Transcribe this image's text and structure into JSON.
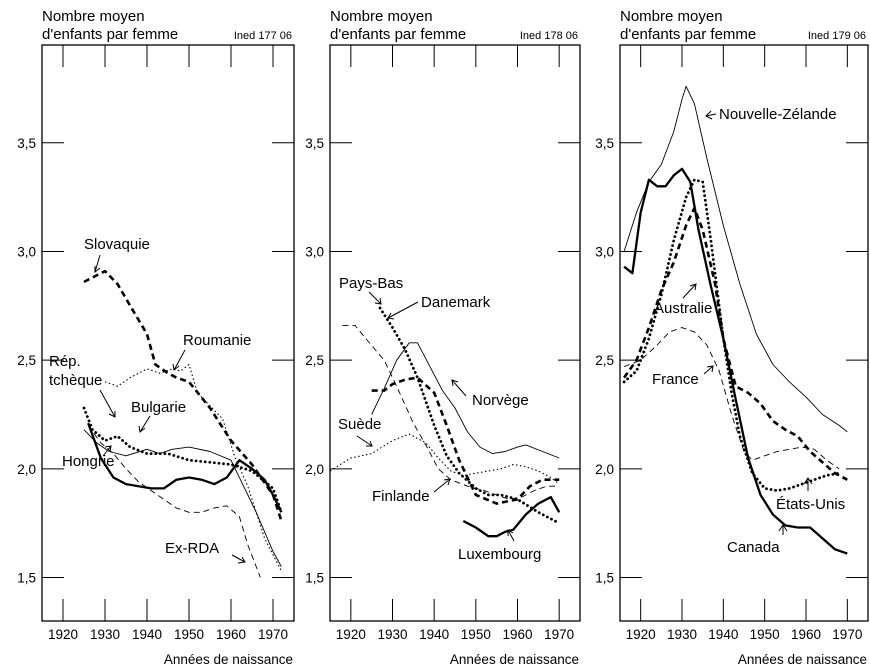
{
  "chart_data": [
    {
      "type": "line",
      "title_lines": [
        "Nombre moyen",
        "d'enfants par femme"
      ],
      "source": "Ined 177 06",
      "xlabel": "Années de naissance",
      "xlim": [
        1915,
        1975
      ],
      "ylim": [
        1.3,
        3.95
      ],
      "x_ticks": [
        1920,
        1930,
        1940,
        1950,
        1960,
        1970
      ],
      "x_tick_labels": [
        "1920",
        "1930",
        "1940",
        "1950",
        "1960",
        "1970"
      ],
      "y_ticks": [
        1.5,
        2.0,
        2.5,
        3.0,
        3.5
      ],
      "y_tick_labels": [
        "1,5",
        "2,0",
        "2,5",
        "3,0",
        "3,5"
      ],
      "series": [
        {
          "name": "Slovaquie",
          "style": "thick-dash",
          "x": [
            1925,
            1928,
            1930,
            1933,
            1936,
            1940,
            1942,
            1945,
            1947,
            1950,
            1955,
            1960,
            1965,
            1970,
            1972
          ],
          "y": [
            2.86,
            2.89,
            2.91,
            2.85,
            2.75,
            2.62,
            2.48,
            2.44,
            2.42,
            2.4,
            2.28,
            2.13,
            2.02,
            1.88,
            1.76
          ]
        },
        {
          "name": "Roumanie",
          "style": "dotted",
          "x": [
            1930,
            1933,
            1936,
            1940,
            1943,
            1946,
            1948,
            1950,
            1952,
            1955,
            1958,
            1961,
            1964,
            1968,
            1972
          ],
          "y": [
            2.4,
            2.38,
            2.42,
            2.46,
            2.44,
            2.46,
            2.45,
            2.48,
            2.35,
            2.29,
            2.23,
            2.05,
            1.92,
            1.68,
            1.53
          ]
        },
        {
          "name": "Rép. tchèque",
          "style": "dotted-thick",
          "x": [
            1925,
            1927,
            1930,
            1933,
            1936,
            1940,
            1945,
            1950,
            1955,
            1960,
            1965,
            1970,
            1972
          ],
          "y": [
            2.28,
            2.18,
            2.13,
            2.15,
            2.1,
            2.07,
            2.07,
            2.04,
            2.03,
            2.02,
            1.99,
            1.91,
            1.8
          ]
        },
        {
          "name": "Bulgarie",
          "style": "thin-dash",
          "x": [
            1926,
            1929,
            1932,
            1935,
            1938,
            1941,
            1944,
            1947,
            1950,
            1953,
            1956,
            1959,
            1962,
            1964,
            1967
          ],
          "y": [
            2.2,
            2.12,
            2.07,
            2.0,
            1.94,
            1.9,
            1.86,
            1.82,
            1.8,
            1.8,
            1.82,
            1.83,
            1.78,
            1.65,
            1.5
          ]
        },
        {
          "name": "Hongrie",
          "style": "solid-thick",
          "x": [
            1926,
            1929,
            1932,
            1935,
            1938,
            1941,
            1944,
            1947,
            1950,
            1953,
            1956,
            1959,
            1962,
            1965,
            1968,
            1970,
            1972
          ],
          "y": [
            2.21,
            2.05,
            1.96,
            1.93,
            1.92,
            1.91,
            1.91,
            1.95,
            1.96,
            1.95,
            1.93,
            1.96,
            2.04,
            2.0,
            1.95,
            1.88,
            1.8
          ]
        },
        {
          "name": "Ex-RDA",
          "style": "solid-thin",
          "x": [
            1925,
            1928,
            1931,
            1935,
            1940,
            1943,
            1946,
            1950,
            1955,
            1960,
            1963,
            1966,
            1970,
            1972
          ],
          "y": [
            2.18,
            2.12,
            2.08,
            2.06,
            2.09,
            2.07,
            2.09,
            2.1,
            2.08,
            2.04,
            1.92,
            1.8,
            1.62,
            1.55
          ]
        }
      ],
      "labels": {
        "Slovaquie": "Slovaquie",
        "Roumanie": "Roumanie",
        "Rep_line1": "Rép.",
        "Rep_line2": "tchèque",
        "Bulgarie": "Bulgarie",
        "Hongrie": "Hongrie",
        "ExRDA": "Ex-RDA"
      }
    },
    {
      "type": "line",
      "title_lines": [
        "Nombre moyen",
        "d'enfants par femme"
      ],
      "source": "Ined 178 06",
      "xlabel": "Années de naissance",
      "xlim": [
        1915,
        1975
      ],
      "ylim": [
        1.3,
        3.95
      ],
      "x_ticks": [
        1920,
        1930,
        1940,
        1950,
        1960,
        1970
      ],
      "x_tick_labels": [
        "1920",
        "1930",
        "1940",
        "1950",
        "1960",
        "1970"
      ],
      "y_ticks": [
        1.5,
        2.0,
        2.5,
        3.0,
        3.5
      ],
      "y_tick_labels": [
        "1,5",
        "2,0",
        "2,5",
        "3,0",
        "3,5"
      ],
      "series": [
        {
          "name": "Pays-Bas",
          "style": "dotted-thick",
          "x": [
            1927,
            1930,
            1933,
            1936,
            1940,
            1943,
            1946,
            1950,
            1953,
            1956,
            1960,
            1965,
            1970
          ],
          "y": [
            2.74,
            2.65,
            2.55,
            2.42,
            2.2,
            2.06,
            1.98,
            1.91,
            1.88,
            1.88,
            1.86,
            1.8,
            1.75
          ]
        },
        {
          "name": "Danemark",
          "style": "thick-dash",
          "x": [
            1925,
            1928,
            1930,
            1933,
            1936,
            1940,
            1943,
            1946,
            1950,
            1955,
            1960,
            1963,
            1966,
            1970
          ],
          "y": [
            2.36,
            2.36,
            2.39,
            2.41,
            2.42,
            2.35,
            2.2,
            2.04,
            1.88,
            1.84,
            1.86,
            1.92,
            1.95,
            1.95
          ]
        },
        {
          "name": "Norvège",
          "style": "solid-thin",
          "x": [
            1925,
            1928,
            1931,
            1934,
            1936,
            1939,
            1942,
            1945,
            1948,
            1951,
            1954,
            1957,
            1960,
            1962,
            1966,
            1970
          ],
          "y": [
            2.25,
            2.37,
            2.5,
            2.58,
            2.58,
            2.47,
            2.36,
            2.28,
            2.17,
            2.1,
            2.07,
            2.08,
            2.1,
            2.11,
            2.08,
            2.05
          ]
        },
        {
          "name": "Suède",
          "style": "thin-dash",
          "x": [
            1918,
            1921,
            1924,
            1928,
            1931,
            1935,
            1938,
            1941,
            1944,
            1948,
            1952,
            1955,
            1958,
            1961,
            1964,
            1967,
            1970
          ],
          "y": [
            2.66,
            2.66,
            2.59,
            2.5,
            2.38,
            2.21,
            2.11,
            2.0,
            1.95,
            1.92,
            1.9,
            1.88,
            1.86,
            1.87,
            1.9,
            1.92,
            1.92
          ]
        },
        {
          "name": "Finlande",
          "style": "dotted",
          "x": [
            1915,
            1920,
            1925,
            1930,
            1934,
            1938,
            1941,
            1944,
            1947,
            1950,
            1953,
            1956,
            1959,
            1962,
            1965,
            1968,
            1970
          ],
          "y": [
            1.99,
            2.05,
            2.07,
            2.13,
            2.16,
            2.12,
            2.05,
            1.99,
            1.97,
            1.98,
            1.99,
            2.0,
            2.02,
            2.01,
            1.99,
            1.96,
            1.93
          ]
        },
        {
          "name": "Luxembourg",
          "style": "solid-thick",
          "x": [
            1947,
            1950,
            1953,
            1955,
            1957,
            1959,
            1962,
            1965,
            1968,
            1970
          ],
          "y": [
            1.76,
            1.73,
            1.69,
            1.69,
            1.71,
            1.72,
            1.79,
            1.84,
            1.87,
            1.8
          ]
        }
      ],
      "labels": {
        "PaysBas": "Pays-Bas",
        "Danemark": "Danemark",
        "Norvege": "Norvège",
        "Suede": "Suède",
        "Finlande": "Finlande",
        "Luxembourg": "Luxembourg"
      }
    },
    {
      "type": "line",
      "title_lines": [
        "Nombre moyen",
        "d'enfants par femme"
      ],
      "source": "Ined 179 06",
      "xlabel": "Années de naissance",
      "xlim": [
        1915,
        1975
      ],
      "ylim": [
        1.3,
        3.95
      ],
      "x_ticks": [
        1920,
        1930,
        1940,
        1950,
        1960,
        1970
      ],
      "x_tick_labels": [
        "1920",
        "1930",
        "1940",
        "1950",
        "1960",
        "1970"
      ],
      "y_ticks": [
        1.5,
        2.0,
        2.5,
        3.0,
        3.5
      ],
      "y_tick_labels": [
        "1,5",
        "2,0",
        "2,5",
        "3,0",
        "3,5"
      ],
      "series": [
        {
          "name": "Nouvelle-Zélande",
          "style": "solid-thin",
          "x": [
            1916,
            1919,
            1922,
            1925,
            1928,
            1930,
            1931,
            1933,
            1936,
            1940,
            1944,
            1948,
            1952,
            1956,
            1960,
            1964,
            1968,
            1970
          ],
          "y": [
            3.0,
            3.18,
            3.32,
            3.4,
            3.55,
            3.7,
            3.76,
            3.68,
            3.43,
            3.12,
            2.85,
            2.62,
            2.48,
            2.4,
            2.33,
            2.25,
            2.2,
            2.17
          ]
        },
        {
          "name": "Canada",
          "style": "solid-thick",
          "x": [
            1916,
            1918,
            1920,
            1922,
            1924,
            1926,
            1928,
            1930,
            1932,
            1934,
            1937,
            1940,
            1943,
            1946,
            1949,
            1952,
            1955,
            1958,
            1961,
            1964,
            1967,
            1970
          ],
          "y": [
            2.93,
            2.9,
            3.18,
            3.33,
            3.3,
            3.3,
            3.35,
            3.38,
            3.32,
            3.1,
            2.84,
            2.6,
            2.32,
            2.05,
            1.88,
            1.79,
            1.74,
            1.73,
            1.73,
            1.68,
            1.63,
            1.61
          ]
        },
        {
          "name": "Australie",
          "style": "thick-dash",
          "x": [
            1916,
            1919,
            1922,
            1925,
            1928,
            1931,
            1933,
            1935,
            1938,
            1940,
            1943,
            1946,
            1949,
            1952,
            1955,
            1958,
            1961,
            1964,
            1967,
            1970
          ],
          "y": [
            2.42,
            2.5,
            2.65,
            2.82,
            2.95,
            3.12,
            3.2,
            3.1,
            2.85,
            2.6,
            2.38,
            2.35,
            2.3,
            2.22,
            2.18,
            2.15,
            2.08,
            2.03,
            1.98,
            1.95
          ]
        },
        {
          "name": "États-Unis",
          "style": "dotted-thick",
          "x": [
            1916,
            1919,
            1922,
            1925,
            1928,
            1931,
            1933,
            1935,
            1937,
            1940,
            1942,
            1944,
            1947,
            1950,
            1953,
            1956,
            1959,
            1962,
            1965,
            1968
          ],
          "y": [
            2.4,
            2.45,
            2.6,
            2.8,
            3.05,
            3.25,
            3.33,
            3.32,
            3.05,
            2.6,
            2.35,
            2.15,
            1.98,
            1.91,
            1.9,
            1.91,
            1.93,
            1.95,
            1.97,
            1.98
          ]
        },
        {
          "name": "France",
          "style": "thin-dash",
          "x": [
            1916,
            1920,
            1924,
            1927,
            1930,
            1933,
            1936,
            1939,
            1942,
            1945,
            1947,
            1950,
            1953,
            1956,
            1959,
            1962,
            1965,
            1968
          ],
          "y": [
            2.47,
            2.5,
            2.57,
            2.63,
            2.65,
            2.63,
            2.57,
            2.45,
            2.25,
            2.08,
            2.04,
            2.06,
            2.08,
            2.09,
            2.1,
            2.09,
            2.04,
            2.0
          ]
        }
      ],
      "labels": {
        "NZ": "Nouvelle-Zélande",
        "Australie": "Australie",
        "France": "France",
        "EtatsUnis": "États-Unis",
        "Canada": "Canada"
      }
    }
  ]
}
